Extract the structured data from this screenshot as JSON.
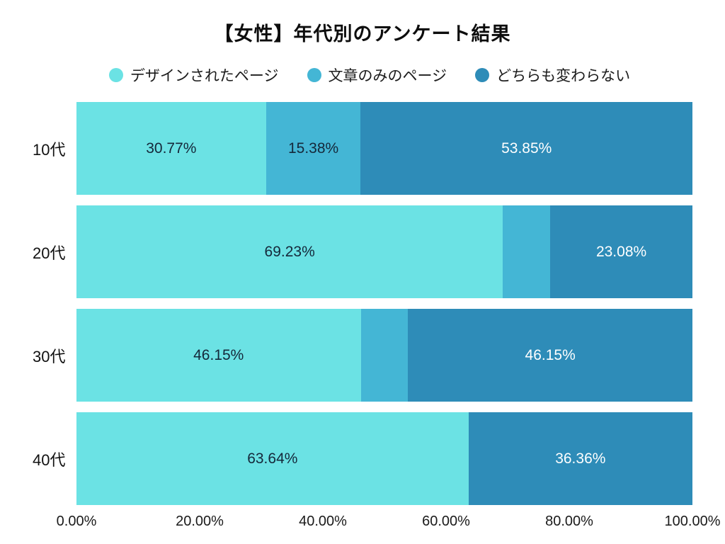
{
  "title": "【女性】年代別のアンケート結果",
  "colors": {
    "series_design": "#6BE2E4",
    "series_text_only": "#44B6D5",
    "series_no_change": "#2E8CB8",
    "label_on_light": "#15283A",
    "label_on_dark": "#FFFFFF",
    "background": "#FFFFFF"
  },
  "chart_data": {
    "type": "bar",
    "orientation": "horizontal",
    "stacked": true,
    "title": "【女性】年代別のアンケート結果",
    "categories": [
      "10代",
      "20代",
      "30代",
      "40代"
    ],
    "series": [
      {
        "name": "デザインされたページ",
        "color": "#6BE2E4",
        "text_color": "#15283A",
        "values": [
          30.77,
          69.23,
          46.15,
          63.64
        ],
        "labels": [
          "30.77%",
          "69.23%",
          "46.15%",
          "63.64%"
        ]
      },
      {
        "name": "文章のみのページ",
        "color": "#44B6D5",
        "text_color": "#15283A",
        "values": [
          15.38,
          7.69,
          7.69,
          0
        ],
        "labels": [
          "15.38%",
          "",
          "",
          ""
        ]
      },
      {
        "name": "どちらも変わらない",
        "color": "#2E8CB8",
        "text_color": "#FFFFFF",
        "values": [
          53.85,
          23.08,
          46.15,
          36.36
        ],
        "labels": [
          "53.85%",
          "23.08%",
          "46.15%",
          "36.36%"
        ]
      }
    ],
    "x_ticks": [
      "0.00%",
      "20.00%",
      "40.00%",
      "60.00%",
      "80.00%",
      "100.00%"
    ],
    "xlim": [
      0,
      100
    ],
    "grid": false,
    "legend_position": "top"
  }
}
